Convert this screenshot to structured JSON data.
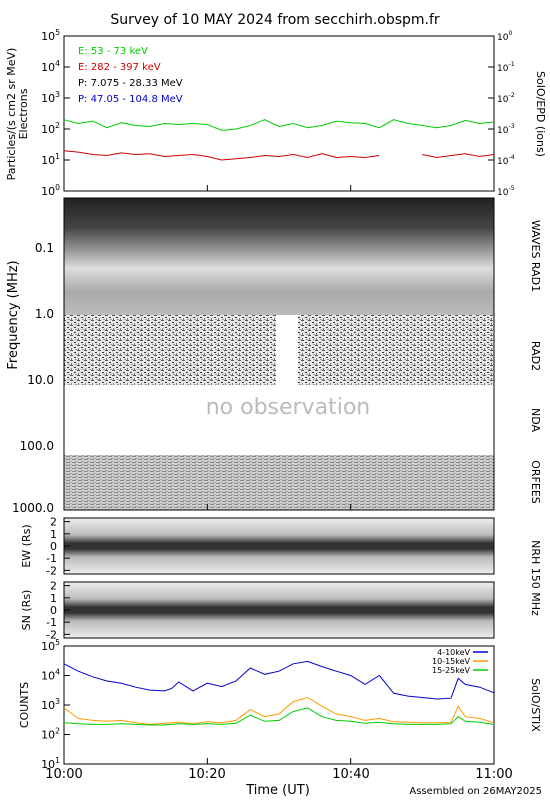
{
  "title": "Survey of 10 MAY 2024 from secchirh.obspm.fr",
  "footer": "Assembled on 26MAY2025",
  "colors": {
    "green": "#00cc00",
    "red": "#cc0000",
    "black": "#000000",
    "blue": "#0000cc",
    "orange": "#ff9900",
    "label_gray": "#bbbbbb"
  },
  "time_axis": {
    "label": "Time (UT)",
    "ticks": [
      "10:00",
      "10:20",
      "10:40",
      "11:00"
    ],
    "range": [
      "10:00",
      "11:00"
    ]
  },
  "particles": {
    "ylabel_line1": "Particles/(s cm2 sr MeV)",
    "ylabel_line2": "Electrons",
    "right_label": "SoIO/EPD (ions)",
    "left_ticks": [
      "10^0",
      "10^1",
      "10^2",
      "10^3",
      "10^4",
      "10^5"
    ],
    "right_ticks": [
      "10^-5",
      "10^-4",
      "10^-3",
      "10^-2",
      "10^-1",
      "10^0"
    ],
    "legend": [
      "E: 53 - 73 keV",
      "E: 282 - 397 keV",
      "P: 7.075 - 28.33 MeV",
      "P: 47.05 - 104.8 MeV"
    ]
  },
  "radio": {
    "ylabel": "Frequency (MHz)",
    "ticks": [
      "0.1",
      "1.0",
      "10.0",
      "100.0",
      "1000.0"
    ],
    "labels": {
      "waves": "WAVES RAD1",
      "rad2": "RAD2",
      "nda": "NDA",
      "orfees": "ORFEES"
    },
    "no_obs": "no observation"
  },
  "nrh": {
    "right_label": "NRH 150 MHz",
    "ew_label": "EW (Rs)",
    "sn_label": "SN (Rs)",
    "ticks": [
      "2",
      "1",
      "0",
      "-1",
      "-2"
    ]
  },
  "stix": {
    "ylabel": "COUNTS",
    "right_label": "SolO/STIX",
    "ticks": [
      "10^1",
      "10^2",
      "10^3",
      "10^4",
      "10^5"
    ],
    "legend": [
      "4-10keV",
      "10-15keV",
      "15-25keV"
    ]
  },
  "chart_data": [
    {
      "type": "line",
      "title": "Particles",
      "ylabel": "Particles/(s cm2 sr MeV)",
      "yscale": "log",
      "ylim": [
        1,
        100000
      ],
      "xlim": [
        "10:00",
        "11:00"
      ],
      "x": [
        0,
        2,
        4,
        6,
        8,
        10,
        12,
        14,
        16,
        18,
        20,
        22,
        24,
        26,
        28,
        30,
        32,
        34,
        36,
        38,
        40,
        42,
        44,
        46,
        48,
        50,
        52,
        54,
        56,
        58,
        60
      ],
      "series": [
        {
          "name": "E: 53 - 73 keV",
          "values": [
            200,
            150,
            180,
            110,
            160,
            130,
            120,
            150,
            140,
            150,
            140,
            90,
            100,
            130,
            200,
            120,
            150,
            110,
            130,
            180,
            160,
            150,
            110,
            200,
            150,
            130,
            110,
            130,
            190,
            150,
            170
          ]
        },
        {
          "name": "E: 282 - 397 keV",
          "values": [
            20,
            18,
            15,
            14,
            17,
            15,
            16,
            13,
            14,
            15,
            13,
            10,
            11,
            12,
            14,
            13,
            15,
            12,
            16,
            12,
            13,
            12,
            14,
            null,
            null,
            15,
            12,
            14,
            16,
            13,
            15
          ]
        }
      ]
    },
    {
      "type": "line",
      "title": "SolO/STIX",
      "ylabel": "COUNTS",
      "yscale": "log",
      "ylim": [
        10,
        100000
      ],
      "xlim": [
        "10:00",
        "11:00"
      ],
      "x": [
        0,
        2,
        4,
        6,
        8,
        10,
        12,
        14,
        15,
        16,
        18,
        20,
        22,
        24,
        26,
        28,
        30,
        32,
        34,
        36,
        38,
        40,
        42,
        44,
        46,
        48,
        50,
        52,
        54,
        55,
        56,
        58,
        60
      ],
      "series": [
        {
          "name": "4-10keV",
          "values": [
            25000,
            14000,
            9000,
            6500,
            5500,
            4000,
            3200,
            3000,
            3600,
            6000,
            3000,
            5500,
            4200,
            6500,
            18000,
            11000,
            14000,
            25000,
            30000,
            20000,
            14000,
            10000,
            5000,
            10000,
            2500,
            2000,
            1800,
            1600,
            1700,
            8000,
            5000,
            4000,
            2600
          ]
        },
        {
          "name": "10-15keV",
          "values": [
            800,
            350,
            300,
            280,
            300,
            250,
            220,
            240,
            250,
            260,
            230,
            270,
            250,
            300,
            700,
            400,
            500,
            1300,
            1800,
            900,
            500,
            400,
            300,
            350,
            270,
            260,
            250,
            250,
            260,
            900,
            400,
            350,
            250
          ]
        },
        {
          "name": "15-25keV",
          "values": [
            250,
            230,
            220,
            220,
            230,
            220,
            210,
            210,
            220,
            230,
            220,
            230,
            220,
            240,
            450,
            280,
            300,
            600,
            800,
            400,
            300,
            280,
            240,
            260,
            230,
            220,
            220,
            220,
            230,
            400,
            280,
            260,
            220
          ]
        }
      ]
    }
  ]
}
